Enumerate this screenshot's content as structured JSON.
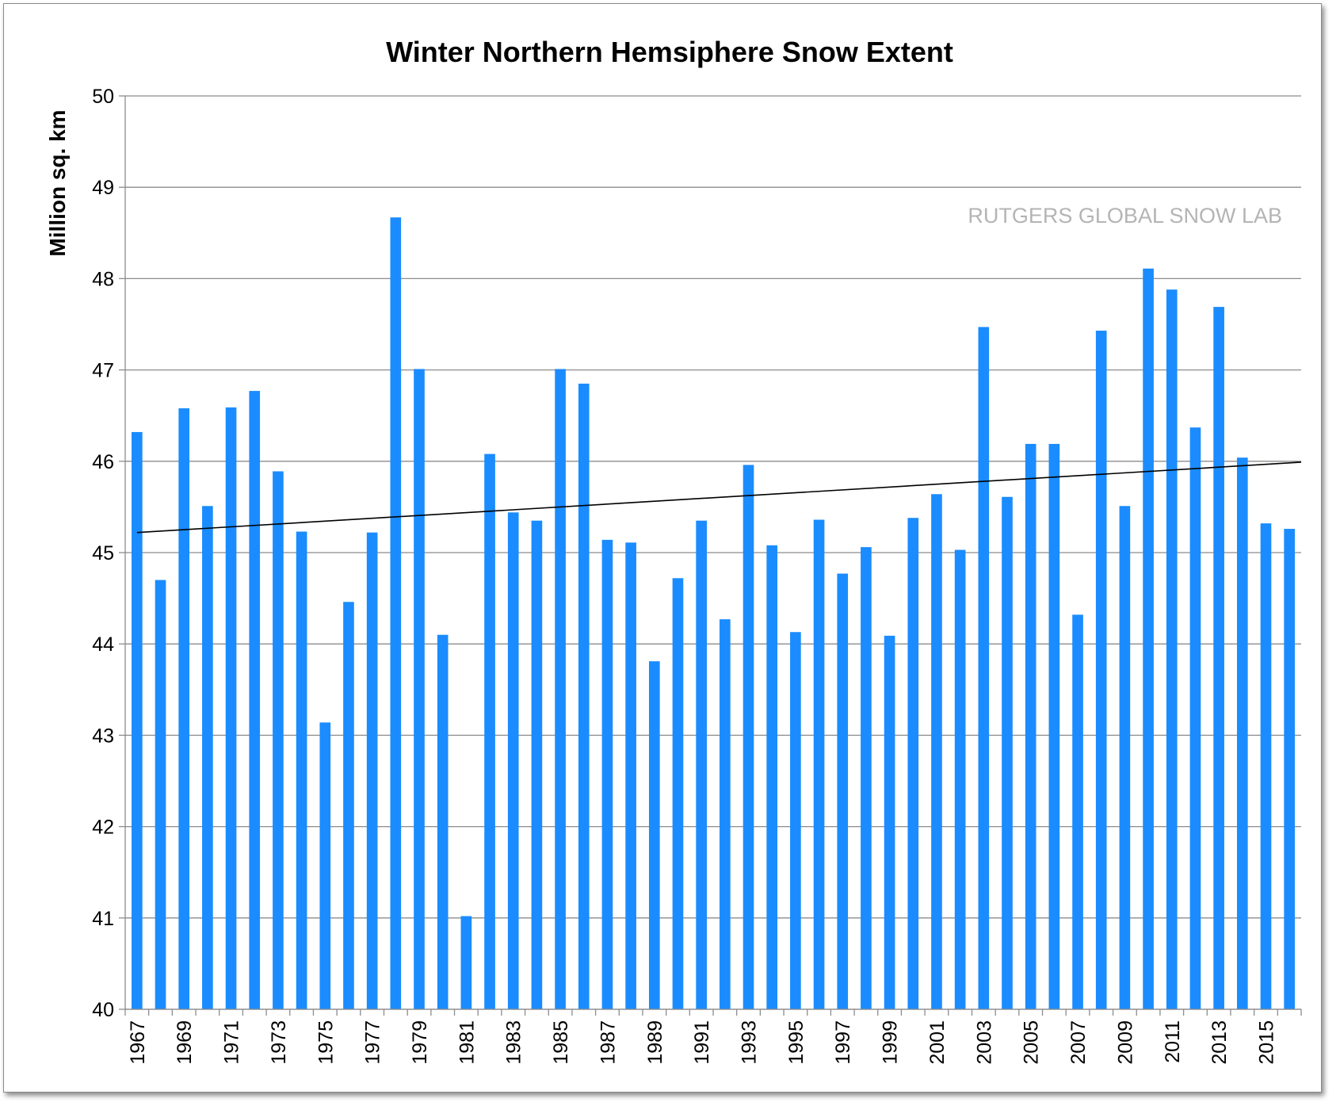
{
  "chart_data": {
    "type": "bar",
    "title": "Winter Northern Hemsiphere Snow Extent",
    "xlabel": "",
    "ylabel": "Million sq. km",
    "watermark": "RUTGERS GLOBAL SNOW LAB",
    "ylim": [
      40,
      50
    ],
    "yticks": [
      40,
      41,
      42,
      43,
      44,
      45,
      46,
      47,
      48,
      49,
      50
    ],
    "grid": true,
    "bar_color": "#1a8cff",
    "trend_color": "#000000",
    "grid_color": "#8c8c8c",
    "categories": [
      "1967",
      "1968",
      "1969",
      "1970",
      "1971",
      "1972",
      "1973",
      "1974",
      "1975",
      "1976",
      "1977",
      "1978",
      "1979",
      "1980",
      "1981",
      "1982",
      "1983",
      "1984",
      "1985",
      "1986",
      "1987",
      "1988",
      "1989",
      "1990",
      "1991",
      "1992",
      "1993",
      "1994",
      "1995",
      "1996",
      "1997",
      "1998",
      "1999",
      "2000",
      "2001",
      "2002",
      "2003",
      "2004",
      "2005",
      "2006",
      "2007",
      "2008",
      "2009",
      "2010",
      "2011",
      "2012",
      "2013",
      "2014",
      "2015",
      "2016"
    ],
    "x_tick_labels": [
      "1967",
      "",
      "1969",
      "",
      "1971",
      "",
      "1973",
      "",
      "1975",
      "",
      "1977",
      "",
      "1979",
      "",
      "1981",
      "",
      "1983",
      "",
      "1985",
      "",
      "1987",
      "",
      "1989",
      "",
      "1991",
      "",
      "1993",
      "",
      "1995",
      "",
      "1997",
      "",
      "1999",
      "",
      "2001",
      "",
      "2003",
      "",
      "2005",
      "",
      "2007",
      "",
      "2009",
      "",
      "2011",
      "",
      "2013",
      "",
      "2015",
      ""
    ],
    "values": [
      46.32,
      44.7,
      46.58,
      45.51,
      46.59,
      46.77,
      45.89,
      45.23,
      43.14,
      44.46,
      45.22,
      48.67,
      47.01,
      44.1,
      41.02,
      46.08,
      45.44,
      45.35,
      47.01,
      46.85,
      45.14,
      45.11,
      43.81,
      44.72,
      45.35,
      44.27,
      45.96,
      45.08,
      44.13,
      45.36,
      44.77,
      45.06,
      44.09,
      45.38,
      45.64,
      45.03,
      47.47,
      45.61,
      46.19,
      46.19,
      44.32,
      47.43,
      45.51,
      48.11,
      47.88,
      46.37,
      47.69,
      46.04,
      45.32,
      45.26
    ],
    "trendline": {
      "from": {
        "x": "1967",
        "y": 45.22
      },
      "to": {
        "x": "2016",
        "y": 45.99
      }
    }
  }
}
